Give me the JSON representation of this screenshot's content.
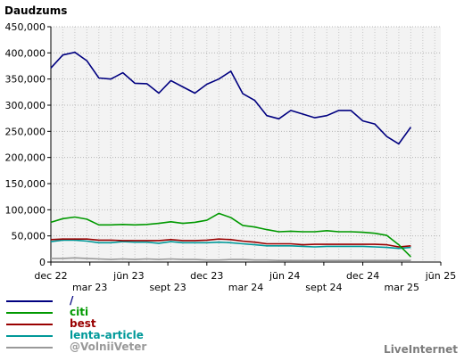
{
  "chart_data": {
    "type": "line",
    "ylabel": "Daudzums",
    "ylim": [
      0,
      450000
    ],
    "yticks": [
      0,
      50000,
      100000,
      150000,
      200000,
      250000,
      300000,
      350000,
      400000,
      450000
    ],
    "ytick_labels": [
      "0",
      "50,000",
      "100,000",
      "150,000",
      "200,000",
      "250,000",
      "300,000",
      "350,000",
      "400,000",
      "450,000"
    ],
    "grid": true,
    "legend_position": "bottom-left",
    "x": [
      "2022-12-26",
      "2023-01-23",
      "2023-02-20",
      "2023-03-20",
      "2023-04-17",
      "2023-05-15",
      "2023-06-12",
      "2023-07-10",
      "2023-08-07",
      "2023-09-04",
      "2023-10-02",
      "2023-10-30",
      "2023-11-27",
      "2023-12-25",
      "2024-01-22",
      "2024-02-19",
      "2024-03-18",
      "2024-04-15",
      "2024-05-13",
      "2024-06-10",
      "2024-07-08",
      "2024-08-05",
      "2024-09-02",
      "2024-09-30",
      "2024-10-28",
      "2024-11-25",
      "2024-12-23",
      "2025-01-20",
      "2025-02-17",
      "2025-03-17",
      "2025-04-14",
      "2025-05-12",
      "2025-06-09"
    ],
    "xticks": [
      {
        "label": "dec 22",
        "date": "2022-12-26",
        "row": 0
      },
      {
        "label": "mar 23",
        "date": "2023-03-27",
        "row": 1
      },
      {
        "label": "jūn 23",
        "date": "2023-06-26",
        "row": 0
      },
      {
        "label": "sept 23",
        "date": "2023-09-25",
        "row": 1
      },
      {
        "label": "dec 23",
        "date": "2023-12-25",
        "row": 0
      },
      {
        "label": "mar 24",
        "date": "2024-03-25",
        "row": 1
      },
      {
        "label": "jūn 24",
        "date": "2024-06-24",
        "row": 0
      },
      {
        "label": "sept 24",
        "date": "2024-09-23",
        "row": 1
      },
      {
        "label": "dec 24",
        "date": "2024-12-23",
        "row": 0
      },
      {
        "label": "mar 25",
        "date": "2025-03-24",
        "row": 1
      },
      {
        "label": "jūn 25",
        "date": "2025-06-23",
        "row": 0
      }
    ],
    "series": [
      {
        "name": "/",
        "color": "#000080",
        "values": [
          371000,
          396000,
          401000,
          385000,
          352000,
          350000,
          362000,
          342000,
          341000,
          323000,
          347000,
          335000,
          323000,
          340000,
          350000,
          365000,
          322000,
          309000,
          280000,
          274000,
          290000,
          283000,
          276000,
          280000,
          290000,
          290000,
          270000,
          264000,
          240000,
          226000,
          258000,
          null,
          null
        ]
      },
      {
        "name": "citi",
        "color": "#009900",
        "values": [
          76000,
          83000,
          86000,
          82000,
          71000,
          71000,
          72000,
          71000,
          72000,
          74000,
          77000,
          74000,
          76000,
          80000,
          93000,
          85000,
          70000,
          67000,
          62000,
          58000,
          59000,
          58000,
          58000,
          60000,
          58000,
          58000,
          57000,
          55000,
          51000,
          33000,
          10000,
          null,
          null
        ]
      },
      {
        "name": "best",
        "color": "#990000",
        "values": [
          43000,
          44000,
          44000,
          44000,
          42000,
          42000,
          41000,
          41000,
          41000,
          41000,
          43000,
          41000,
          41000,
          42000,
          44000,
          43000,
          40000,
          38000,
          35000,
          35000,
          35000,
          33000,
          34000,
          34000,
          34000,
          34000,
          34000,
          34000,
          33000,
          29000,
          31000,
          null,
          null
        ]
      },
      {
        "name": "lenta-article",
        "color": "#009999",
        "values": [
          39000,
          42000,
          42000,
          40000,
          37000,
          37000,
          39000,
          38000,
          38000,
          36000,
          39000,
          37000,
          37000,
          37000,
          38000,
          37000,
          35000,
          33000,
          31000,
          31000,
          31000,
          30000,
          29000,
          30000,
          30000,
          30000,
          30000,
          29000,
          28000,
          26000,
          28000,
          null,
          null
        ]
      },
      {
        "name": "@VolniiVeter",
        "color": "#999999",
        "values": [
          7000,
          7000,
          8000,
          7000,
          6000,
          5000,
          6000,
          5000,
          6000,
          5000,
          6000,
          5000,
          5000,
          4000,
          4000,
          5000,
          5000,
          4000,
          4000,
          3000,
          3000,
          3000,
          3000,
          3000,
          3000,
          3000,
          3000,
          3000,
          3000,
          3000,
          3000,
          null,
          null
        ]
      }
    ]
  },
  "branding": "LiveInternet"
}
